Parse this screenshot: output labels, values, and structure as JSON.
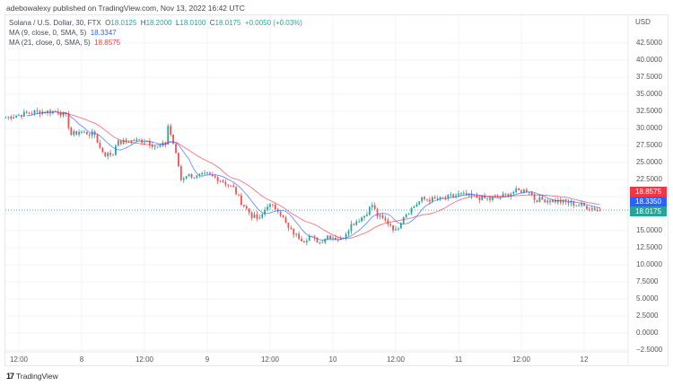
{
  "publisher_line": "adebowalexy published on TradingView.com, Nov 13, 2022 16:42 UTC",
  "legend": {
    "symbol": "Solana / U.S. Dollar, 30, FTX",
    "o_label": "O",
    "o": "18.0125",
    "h_label": "H",
    "h": "18.2000",
    "l_label": "L",
    "l": "18.0100",
    "c_label": "C",
    "c": "18.0175",
    "change": "+0.0050 (+0.03%)",
    "ma9_label": "MA (9, close, 0, SMA, 5)",
    "ma9_value": "18.3347",
    "ma21_label": "MA (21, close, 0, SMA, 5)",
    "ma21_value": "18.8575"
  },
  "price_axis": {
    "currency": "USD",
    "labels": [
      "42.5000",
      "40.0000",
      "37.5000",
      "35.0000",
      "32.5000",
      "30.0000",
      "27.5000",
      "25.0000",
      "22.5000",
      "15.0000",
      "12.5000",
      "10.0000",
      "7.5000",
      "5.0000",
      "2.5000",
      "0.0000",
      "−2.5000"
    ],
    "values": [
      42.5,
      40,
      37.5,
      35,
      32.5,
      30,
      27.5,
      25,
      22.5,
      15,
      12.5,
      10,
      7.5,
      5,
      2.5,
      0,
      -2.5
    ]
  },
  "price_tags": {
    "ma21": "18.8575",
    "ma9": "18.3350",
    "last": "18.0175"
  },
  "time_axis": {
    "labels": [
      "12:00",
      "8",
      "12:00",
      "9",
      "12:00",
      "10",
      "12:00",
      "11",
      "12:00",
      "12"
    ],
    "times": [
      "2022-11-07T12:00",
      "2022-11-08T00:00",
      "2022-11-08T12:00",
      "2022-11-09T00:00",
      "2022-11-09T12:00",
      "2022-11-10T00:00",
      "2022-11-10T12:00",
      "2022-11-11T00:00",
      "2022-11-11T12:00",
      "2022-11-12T00:00"
    ]
  },
  "colors": {
    "up": "#26a69a",
    "down": "#ef5350",
    "ma9": "#2962ff",
    "ma21": "#f23645",
    "grid": "#f0f3fa"
  },
  "chart_data": {
    "type": "candlestick",
    "interval": "30",
    "series": [
      {
        "name": "Solana / U.S. Dollar",
        "approx_close_path": [
          [
            "2022-11-07T09:30",
            31.6
          ],
          [
            "2022-11-07T15:00",
            32.4
          ],
          [
            "2022-11-07T19:30",
            32.5
          ],
          [
            "2022-11-07T21:00",
            31.7
          ],
          [
            "2022-11-07T22:00",
            29.1
          ],
          [
            "2022-11-07T23:30",
            29.5
          ],
          [
            "2022-11-08T02:30",
            29.1
          ],
          [
            "2022-11-08T03:30",
            27.1
          ],
          [
            "2022-11-08T04:30",
            26.2
          ],
          [
            "2022-11-08T06:00",
            26.2
          ],
          [
            "2022-11-08T06:30",
            27.8
          ],
          [
            "2022-11-08T09:30",
            28.2
          ],
          [
            "2022-11-08T12:30",
            28.2
          ],
          [
            "2022-11-08T14:30",
            27.1
          ],
          [
            "2022-11-08T16:00",
            27.8
          ],
          [
            "2022-11-08T16:30",
            30.4
          ],
          [
            "2022-11-08T17:30",
            27.8
          ],
          [
            "2022-11-08T18:30",
            24.5
          ],
          [
            "2022-11-08T19:00",
            22.5
          ],
          [
            "2022-11-08T20:00",
            23.2
          ],
          [
            "2022-11-08T22:00",
            22.9
          ],
          [
            "2022-11-09T00:00",
            23.2
          ],
          [
            "2022-11-09T02:30",
            22.5
          ],
          [
            "2022-11-09T05:00",
            21.2
          ],
          [
            "2022-11-09T06:30",
            19.2
          ],
          [
            "2022-11-09T08:30",
            17.2
          ],
          [
            "2022-11-09T10:00",
            16.6
          ],
          [
            "2022-11-09T11:30",
            18.8
          ],
          [
            "2022-11-09T13:30",
            18.2
          ],
          [
            "2022-11-09T15:30",
            15.3
          ],
          [
            "2022-11-09T17:00",
            14.3
          ],
          [
            "2022-11-09T18:30",
            13.6
          ],
          [
            "2022-11-09T19:30",
            14.2
          ],
          [
            "2022-11-09T21:30",
            13.3
          ],
          [
            "2022-11-09T23:00",
            14.3
          ],
          [
            "2022-11-10T01:30",
            13.7
          ],
          [
            "2022-11-10T03:30",
            15.9
          ],
          [
            "2022-11-10T06:00",
            17.2
          ],
          [
            "2022-11-10T07:30",
            18.8
          ],
          [
            "2022-11-10T08:30",
            17.2
          ],
          [
            "2022-11-10T11:00",
            15.9
          ],
          [
            "2022-11-10T12:00",
            14.9
          ],
          [
            "2022-11-10T13:30",
            17.2
          ],
          [
            "2022-11-10T15:30",
            18.6
          ],
          [
            "2022-11-10T17:00",
            19.6
          ],
          [
            "2022-11-10T20:30",
            19.6
          ],
          [
            "2022-11-11T00:00",
            20.3
          ],
          [
            "2022-11-11T03:30",
            19.9
          ],
          [
            "2022-11-11T06:00",
            19.6
          ],
          [
            "2022-11-11T08:30",
            20.1
          ],
          [
            "2022-11-11T11:00",
            20.8
          ],
          [
            "2022-11-11T13:30",
            20.9
          ],
          [
            "2022-11-11T14:30",
            19.6
          ],
          [
            "2022-11-11T17:00",
            19.5
          ],
          [
            "2022-11-11T20:30",
            19.2
          ],
          [
            "2022-11-12T00:00",
            18.6
          ],
          [
            "2022-11-12T03:00",
            18.0175
          ]
        ]
      }
    ],
    "indicators": [
      {
        "name": "MA (9, close, 0, SMA, 5)",
        "last": 18.3347
      },
      {
        "name": "MA (21, close, 0, SMA, 5)",
        "last": 18.8575
      }
    ],
    "ylim": [
      -2.5,
      45
    ],
    "grid": true
  },
  "branding": "TradingView"
}
